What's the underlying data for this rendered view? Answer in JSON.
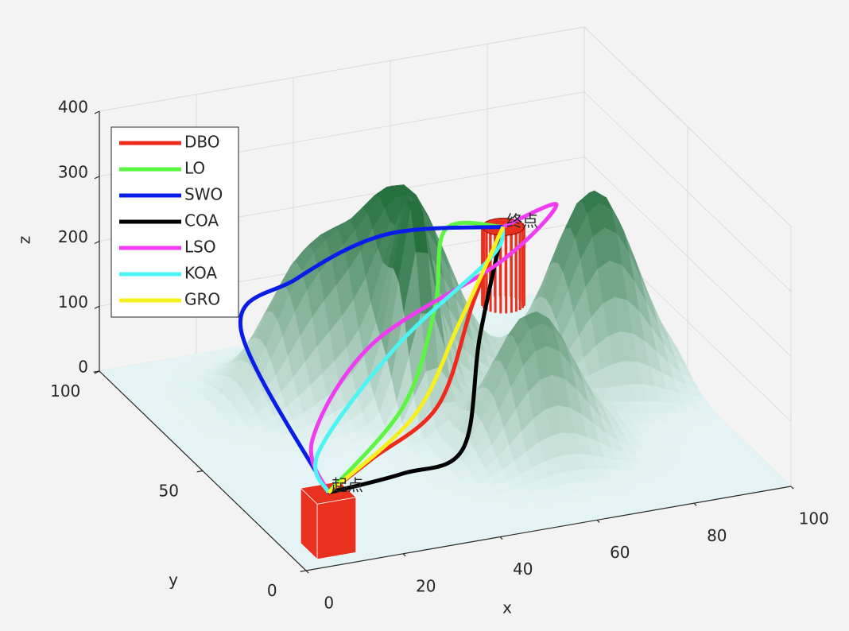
{
  "chart_data": {
    "type": "path3d",
    "xlabel": "x",
    "ylabel": "y",
    "zlabel": "z",
    "xlim": [
      0,
      100
    ],
    "ylim": [
      0,
      100
    ],
    "zlim": [
      0,
      400
    ],
    "xticks": [
      0,
      20,
      40,
      60,
      80,
      100
    ],
    "yticks": [
      0,
      50,
      100
    ],
    "zticks": [
      0,
      100,
      200,
      300,
      400
    ],
    "grid": true,
    "legend_loc": "northwest",
    "terrain": {
      "peaks": [
        {
          "x": 50,
          "y": 70,
          "h": 300,
          "sx": 9,
          "sy": 9
        },
        {
          "x": 85,
          "y": 60,
          "h": 290,
          "sx": 8,
          "sy": 9
        },
        {
          "x": 46,
          "y": 55,
          "h": 270,
          "sx": 3.5,
          "sy": 5
        },
        {
          "x": 32,
          "y": 75,
          "h": 190,
          "sx": 8,
          "sy": 8
        },
        {
          "x": 62,
          "y": 35,
          "h": 210,
          "sx": 8,
          "sy": 8
        }
      ]
    },
    "start": {
      "label": "起点",
      "x": 8,
      "y": 8,
      "z": 85
    },
    "end": {
      "label": "终点",
      "x": 82,
      "y": 97,
      "z": 125
    },
    "series": [
      {
        "name": "DBO",
        "color": "#ee2a1e",
        "x": [
          8,
          20,
          40,
          60,
          82
        ],
        "y": [
          8,
          15,
          30,
          60,
          97
        ],
        "z": [
          85,
          100,
          110,
          150,
          125
        ]
      },
      {
        "name": "LO",
        "color": "#5cf542",
        "x": [
          8,
          35,
          50,
          65,
          82
        ],
        "y": [
          8,
          35,
          55,
          85,
          97
        ],
        "z": [
          85,
          100,
          170,
          180,
          125
        ]
      },
      {
        "name": "SWO",
        "color": "#0a1de8",
        "x": [
          8,
          10,
          30,
          55,
          82
        ],
        "y": [
          8,
          55,
          75,
          90,
          97
        ],
        "z": [
          85,
          190,
          180,
          170,
          125
        ]
      },
      {
        "name": "COA",
        "color": "#000000",
        "x": [
          8,
          25,
          40,
          55,
          82
        ],
        "y": [
          8,
          12,
          18,
          45,
          97
        ],
        "z": [
          85,
          80,
          80,
          150,
          125
        ]
      },
      {
        "name": "LSO",
        "color": "#f03cf0",
        "x": [
          8,
          12,
          35,
          70,
          90,
          82
        ],
        "y": [
          8,
          25,
          50,
          70,
          90,
          97
        ],
        "z": [
          85,
          110,
          150,
          170,
          170,
          125
        ]
      },
      {
        "name": "KOA",
        "color": "#4cf4f4",
        "x": [
          8,
          12,
          40,
          70,
          82
        ],
        "y": [
          8,
          22,
          50,
          75,
          97
        ],
        "z": [
          85,
          100,
          140,
          160,
          125
        ]
      },
      {
        "name": "GRO",
        "color": "#f5f01e",
        "x": [
          8,
          35,
          55,
          82
        ],
        "y": [
          8,
          30,
          55,
          97
        ],
        "z": [
          85,
          100,
          140,
          125
        ]
      }
    ]
  }
}
